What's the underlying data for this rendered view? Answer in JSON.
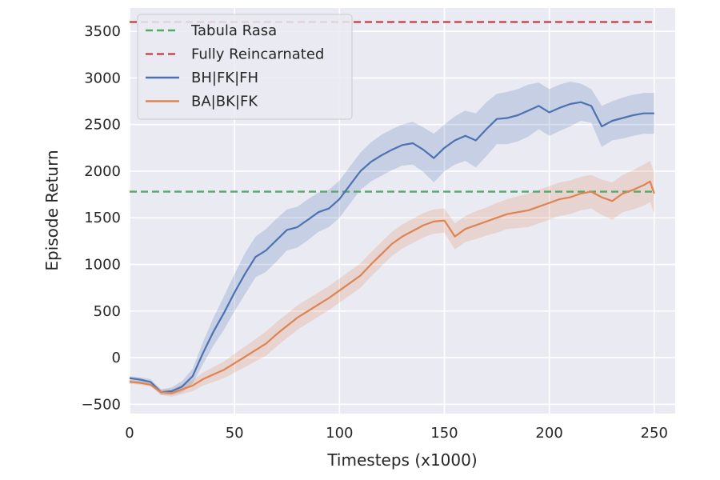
{
  "chart_data": {
    "type": "line",
    "title": "",
    "xlabel": "Timesteps (x1000)",
    "ylabel": "Episode Return",
    "xlim": [
      0,
      260
    ],
    "ylim": [
      -600,
      3750
    ],
    "x_ticks": [
      0,
      50,
      100,
      150,
      200,
      250
    ],
    "y_ticks": [
      -500,
      0,
      500,
      1000,
      1500,
      2000,
      2500,
      3000,
      3500
    ],
    "y_tick_labels": [
      "−500",
      "0",
      "500",
      "1000",
      "1500",
      "2000",
      "2500",
      "3000",
      "3500"
    ],
    "grid": true,
    "legend": "top-left",
    "series": [
      {
        "name": "Tabula Rasa",
        "style": "dashed",
        "color": "#55a868",
        "x": [
          0,
          250
        ],
        "y": [
          1780,
          1780
        ]
      },
      {
        "name": "Fully Reincarnated",
        "style": "dashed",
        "color": "#c44e52",
        "x": [
          0,
          250
        ],
        "y": [
          3600,
          3600
        ]
      },
      {
        "name": "BH|FK|FH",
        "style": "solid",
        "color": "#4c72b0",
        "x": [
          0,
          5,
          10,
          15,
          20,
          25,
          30,
          35,
          40,
          45,
          50,
          55,
          60,
          65,
          70,
          75,
          80,
          85,
          90,
          95,
          100,
          105,
          110,
          115,
          120,
          125,
          130,
          135,
          140,
          145,
          150,
          155,
          160,
          165,
          170,
          175,
          180,
          185,
          190,
          195,
          200,
          205,
          210,
          215,
          220,
          225,
          230,
          235,
          240,
          245,
          250
        ],
        "y": [
          -220,
          -235,
          -260,
          -370,
          -360,
          -310,
          -200,
          50,
          280,
          480,
          700,
          900,
          1080,
          1150,
          1260,
          1370,
          1400,
          1480,
          1560,
          1600,
          1700,
          1850,
          2000,
          2100,
          2170,
          2230,
          2280,
          2300,
          2230,
          2140,
          2250,
          2330,
          2380,
          2330,
          2450,
          2560,
          2570,
          2600,
          2650,
          2700,
          2630,
          2680,
          2720,
          2740,
          2700,
          2480,
          2540,
          2570,
          2600,
          2620,
          2620
        ],
        "band_upper": [
          -200,
          -210,
          -230,
          -340,
          -320,
          -250,
          -120,
          170,
          430,
          660,
          900,
          1120,
          1300,
          1380,
          1490,
          1590,
          1620,
          1700,
          1770,
          1800,
          1900,
          2050,
          2200,
          2310,
          2390,
          2450,
          2500,
          2530,
          2470,
          2400,
          2500,
          2590,
          2650,
          2620,
          2740,
          2830,
          2850,
          2880,
          2930,
          2950,
          2880,
          2930,
          2960,
          2940,
          2880,
          2700,
          2750,
          2790,
          2820,
          2840,
          2840
        ],
        "band_lower": [
          -250,
          -265,
          -290,
          -400,
          -400,
          -370,
          -280,
          -70,
          130,
          300,
          500,
          680,
          860,
          920,
          1030,
          1150,
          1180,
          1260,
          1350,
          1400,
          1500,
          1650,
          1800,
          1890,
          1950,
          2010,
          2060,
          2070,
          1990,
          1880,
          2000,
          2070,
          2110,
          2040,
          2160,
          2290,
          2290,
          2320,
          2370,
          2450,
          2380,
          2430,
          2480,
          2540,
          2520,
          2260,
          2330,
          2350,
          2380,
          2400,
          2400
        ]
      },
      {
        "name": "BA|BK|FK",
        "style": "solid",
        "color": "#dd8452",
        "x": [
          0,
          5,
          10,
          15,
          20,
          25,
          30,
          35,
          40,
          45,
          50,
          55,
          60,
          65,
          70,
          75,
          80,
          85,
          90,
          95,
          100,
          105,
          110,
          115,
          120,
          125,
          130,
          135,
          140,
          145,
          150,
          155,
          160,
          165,
          170,
          175,
          180,
          185,
          190,
          195,
          200,
          205,
          210,
          215,
          220,
          225,
          230,
          235,
          240,
          245,
          248,
          250
        ],
        "y": [
          -260,
          -270,
          -290,
          -370,
          -380,
          -340,
          -300,
          -230,
          -180,
          -130,
          -60,
          10,
          80,
          150,
          250,
          340,
          430,
          500,
          570,
          640,
          720,
          800,
          880,
          1000,
          1110,
          1220,
          1300,
          1360,
          1420,
          1460,
          1470,
          1300,
          1380,
          1420,
          1460,
          1500,
          1540,
          1560,
          1580,
          1620,
          1660,
          1700,
          1720,
          1760,
          1780,
          1720,
          1680,
          1760,
          1800,
          1850,
          1890,
          1760
        ],
        "band_upper": [
          -240,
          -250,
          -270,
          -340,
          -340,
          -290,
          -240,
          -160,
          -100,
          -40,
          40,
          120,
          200,
          280,
          380,
          470,
          560,
          630,
          700,
          770,
          850,
          930,
          1010,
          1130,
          1240,
          1350,
          1430,
          1490,
          1550,
          1590,
          1600,
          1440,
          1520,
          1570,
          1610,
          1660,
          1700,
          1730,
          1760,
          1800,
          1840,
          1880,
          1900,
          1940,
          1960,
          1910,
          1880,
          1960,
          2010,
          2070,
          2110,
          1980
        ],
        "band_lower": [
          -280,
          -290,
          -310,
          -400,
          -420,
          -390,
          -360,
          -300,
          -260,
          -220,
          -160,
          -100,
          -40,
          20,
          120,
          210,
          300,
          370,
          440,
          510,
          590,
          670,
          750,
          870,
          980,
          1090,
          1170,
          1230,
          1290,
          1330,
          1340,
          1160,
          1240,
          1270,
          1310,
          1340,
          1380,
          1390,
          1400,
          1440,
          1480,
          1520,
          1540,
          1580,
          1600,
          1530,
          1480,
          1560,
          1590,
          1630,
          1670,
          1540
        ]
      }
    ]
  }
}
